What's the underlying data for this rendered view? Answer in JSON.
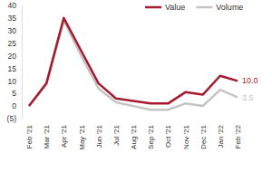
{
  "chart_data": {
    "type": "line",
    "categories": [
      "Feb '21",
      "Mar '21",
      "Apr '21",
      "May '21",
      "Jun '21",
      "Jul '21",
      "Aug '21",
      "Sep '21",
      "Oct '21",
      "Nov '21",
      "Dec '21",
      "Jan '22",
      "Feb '22"
    ],
    "series": [
      {
        "name": "Value",
        "color": "#a6192e",
        "values": [
          0,
          9,
          35,
          22,
          9,
          3,
          2,
          1,
          1,
          5.5,
          4.5,
          12,
          10.0
        ],
        "value_labels": [
          null,
          null,
          null,
          null,
          null,
          null,
          null,
          null,
          null,
          null,
          null,
          null,
          "10.0"
        ]
      },
      {
        "name": "Volume",
        "color": "#c4c4c4",
        "values": [
          0,
          8.5,
          34,
          20,
          7,
          1.5,
          0,
          -1.5,
          -1.5,
          1,
          0,
          6.5,
          3.5
        ],
        "value_labels": [
          null,
          null,
          null,
          null,
          null,
          null,
          null,
          null,
          null,
          null,
          null,
          null,
          "3.5"
        ]
      }
    ],
    "ylim": [
      -5,
      40
    ],
    "yticks": [
      {
        "value": -5,
        "label": "(5)"
      },
      0,
      5,
      10,
      15,
      20,
      25,
      30,
      35,
      40
    ],
    "grid": false,
    "legend": "top",
    "data_labels": true
  }
}
